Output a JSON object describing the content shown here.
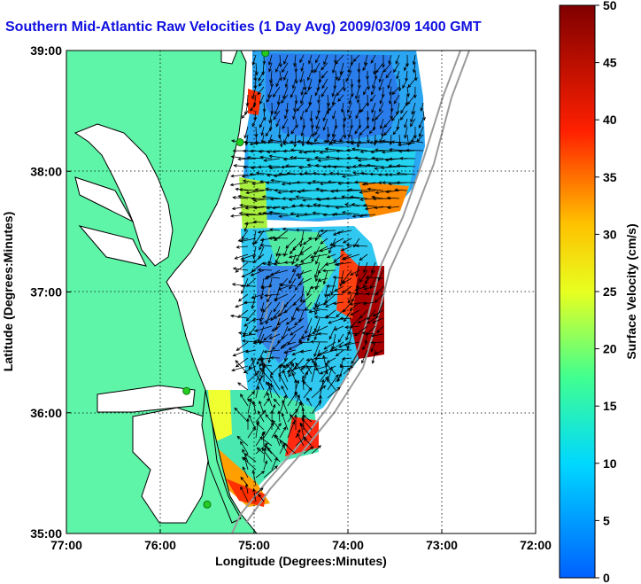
{
  "title": "Southern Mid-Atlantic Raw Velocities (1 Day Avg) 2009/03/09 1400 GMT",
  "colors": {
    "title": "#1010e0",
    "land": "#5ef5a8",
    "water": "#ffffff",
    "coast": "#000000",
    "station": "#22cc22",
    "bathymetry": "#9a9a9a"
  },
  "icons": {
    "station": "circle-marker-icon",
    "vector": "arrow-icon"
  },
  "chart_data": {
    "type": "heatmap",
    "title": "Southern Mid-Atlantic Raw Velocities (1 Day Avg) 2009/03/09 1400 GMT",
    "xlabel": "Longitude (Degrees:Minutes)",
    "ylabel": "Latitude (Degrees:Minutes)",
    "xlim": [
      -77,
      -72
    ],
    "ylim": [
      35,
      39
    ],
    "xticks": [
      "77:00",
      "76:00",
      "75:00",
      "74:00",
      "73:00",
      "72:00"
    ],
    "yticks": [
      "35:00",
      "36:00",
      "37:00",
      "38:00",
      "39:00"
    ],
    "grid": true,
    "colorbar": {
      "label": "Surface Velocity (cm/s)",
      "range": [
        0,
        50
      ],
      "ticks": [
        "0",
        "5",
        "10",
        "15",
        "20",
        "25",
        "30",
        "35",
        "40",
        "45",
        "50"
      ]
    },
    "stations": [
      {
        "lon": -74.88,
        "lat": 38.98
      },
      {
        "lon": -75.15,
        "lat": 38.24
      },
      {
        "lon": -75.72,
        "lat": 36.18
      },
      {
        "lon": -75.5,
        "lat": 35.24
      }
    ],
    "regions": [
      {
        "name": "north",
        "speed": 10
      },
      {
        "name": "north-east-edge",
        "speed": 22
      },
      {
        "name": "central",
        "speed": 12
      },
      {
        "name": "east-jet",
        "speed": 48
      },
      {
        "name": "south",
        "speed": 18
      },
      {
        "name": "south-tip",
        "speed": 30
      }
    ]
  }
}
